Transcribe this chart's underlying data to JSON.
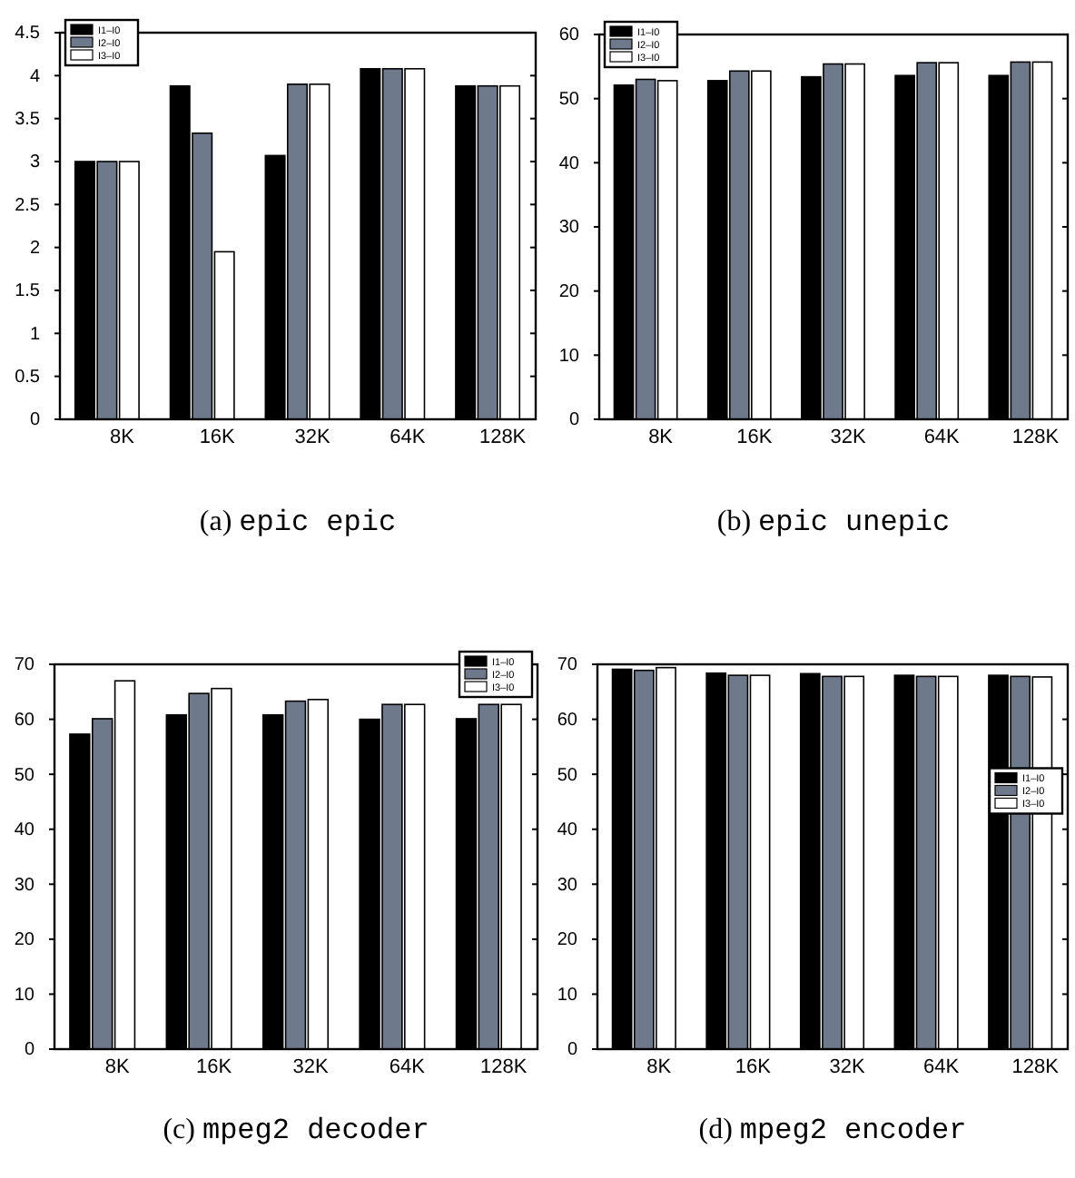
{
  "chart_data": [
    {
      "type": "bar",
      "title": "(a) epic epic",
      "categories": [
        "8K",
        "16K",
        "32K",
        "64K",
        "128K"
      ],
      "ylim": [
        0,
        4.5
      ],
      "yticks": [
        0,
        0.5,
        1,
        1.5,
        2,
        2.5,
        3,
        3.5,
        4,
        4.5
      ],
      "grid": false,
      "legend": "top left",
      "series": [
        {
          "name": "I1–I0",
          "color": "#000000",
          "values": [
            3,
            3.88,
            3.07,
            4.08,
            3.88
          ]
        },
        {
          "name": "I2–I0",
          "color": "#6e7a8c",
          "values": [
            3,
            3.33,
            3.9,
            4.08,
            3.88
          ]
        },
        {
          "name": "I3–I0",
          "color": "#ffffff",
          "values": [
            3,
            1.95,
            3.9,
            4.08,
            3.88
          ]
        }
      ]
    },
    {
      "type": "bar",
      "title": "(b) epic unepic",
      "categories": [
        "8K",
        "16K",
        "32K",
        "64K",
        "128K"
      ],
      "ylim": [
        0,
        60
      ],
      "yticks": [
        0,
        10,
        20,
        30,
        40,
        50,
        60
      ],
      "grid": false,
      "legend": "top left",
      "series": [
        {
          "name": "I1–I0",
          "color": "#000000",
          "values": [
            52.1,
            52.8,
            53.4,
            53.6,
            53.6
          ]
        },
        {
          "name": "I2–I0",
          "color": "#6e7a8c",
          "values": [
            53.0,
            54.3,
            55.4,
            55.6,
            55.7
          ]
        },
        {
          "name": "I3–I0",
          "color": "#ffffff",
          "values": [
            52.8,
            54.3,
            55.4,
            55.6,
            55.7
          ]
        }
      ]
    },
    {
      "type": "bar",
      "title": "(c) mpeg2 decoder",
      "categories": [
        "8K",
        "16K",
        "32K",
        "64K",
        "128K"
      ],
      "ylim": [
        0,
        70
      ],
      "yticks": [
        0,
        10,
        20,
        30,
        40,
        50,
        60,
        70
      ],
      "grid": false,
      "legend": "top right",
      "series": [
        {
          "name": "I1–I0",
          "color": "#000000",
          "values": [
            57.3,
            60.8,
            60.8,
            60.0,
            60.1
          ]
        },
        {
          "name": "I2–I0",
          "color": "#6e7a8c",
          "values": [
            60.1,
            64.7,
            63.3,
            62.7,
            62.7
          ]
        },
        {
          "name": "I3–I0",
          "color": "#ffffff",
          "values": [
            67.0,
            65.6,
            63.6,
            62.7,
            62.7
          ]
        }
      ]
    },
    {
      "type": "bar",
      "title": "(d) mpeg2 encoder",
      "categories": [
        "8K",
        "16K",
        "32K",
        "64K",
        "128K"
      ],
      "ylim": [
        0,
        70
      ],
      "yticks": [
        0,
        10,
        20,
        30,
        40,
        50,
        60,
        70
      ],
      "grid": false,
      "legend": "right",
      "series": [
        {
          "name": "I1–I0",
          "color": "#000000",
          "values": [
            69.1,
            68.4,
            68.3,
            68.0,
            68.0
          ]
        },
        {
          "name": "I2–I0",
          "color": "#6e7a8c",
          "values": [
            68.9,
            68.0,
            67.8,
            67.8,
            67.8
          ]
        },
        {
          "name": "I3–I0",
          "color": "#ffffff",
          "values": [
            69.4,
            68.0,
            67.8,
            67.8,
            67.7
          ]
        }
      ]
    }
  ]
}
